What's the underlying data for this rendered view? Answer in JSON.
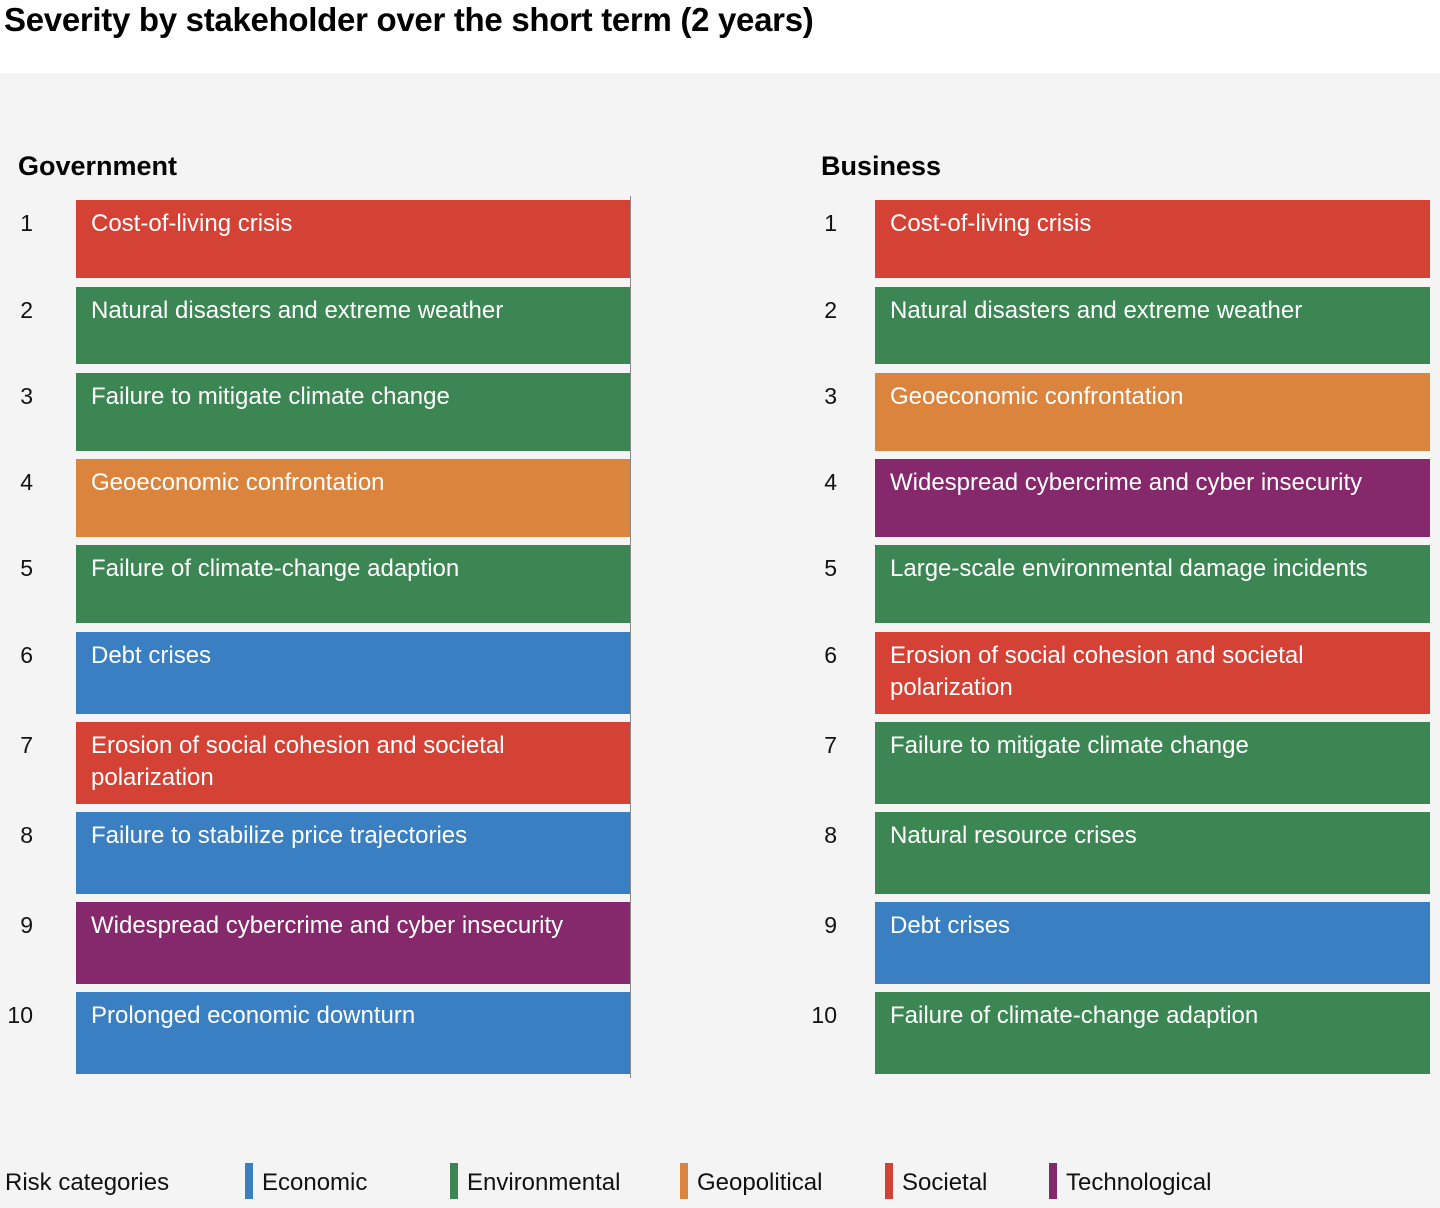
{
  "title": "Severity by stakeholder over the short term (2 years)",
  "colors": {
    "Economic": "#3a7fc1",
    "Environmental": "#3b8652",
    "Geopolitical": "#db843d",
    "Societal": "#d44235",
    "Technological": "#86296c"
  },
  "legend": {
    "label": "Risk categories",
    "items": [
      {
        "name": "Economic",
        "color": "#3a7fc1"
      },
      {
        "name": "Environmental",
        "color": "#3b8652"
      },
      {
        "name": "Geopolitical",
        "color": "#db843d"
      },
      {
        "name": "Societal",
        "color": "#d44235"
      },
      {
        "name": "Technological",
        "color": "#86296c"
      }
    ]
  },
  "chart_data": {
    "type": "table",
    "title": "Severity by stakeholder over the short term (2 years)",
    "columns": [
      {
        "name": "Government",
        "rows": [
          {
            "rank": "1",
            "risk": "Cost-of-living crisis",
            "category": "Societal"
          },
          {
            "rank": "2",
            "risk": "Natural disasters and extreme weather",
            "category": "Environmental"
          },
          {
            "rank": "3",
            "risk": "Failure to mitigate climate change",
            "category": "Environmental"
          },
          {
            "rank": "4",
            "risk": "Geoeconomic confrontation",
            "category": "Geopolitical"
          },
          {
            "rank": "5",
            "risk": "Failure of climate-change adaption",
            "category": "Environmental"
          },
          {
            "rank": "6",
            "risk": "Debt crises",
            "category": "Economic"
          },
          {
            "rank": "7",
            "risk": "Erosion of social cohesion and societal polarization",
            "category": "Societal"
          },
          {
            "rank": "8",
            "risk": "Failure to stabilize price trajectories",
            "category": "Economic"
          },
          {
            "rank": "9",
            "risk": "Widespread cybercrime and cyber insecurity",
            "category": "Technological"
          },
          {
            "rank": "10",
            "risk": "Prolonged economic downturn",
            "category": "Economic"
          }
        ]
      },
      {
        "name": "Business",
        "rows": [
          {
            "rank": "1",
            "risk": "Cost-of-living crisis",
            "category": "Societal"
          },
          {
            "rank": "2",
            "risk": "Natural disasters and extreme weather",
            "category": "Environmental"
          },
          {
            "rank": "3",
            "risk": "Geoeconomic confrontation",
            "category": "Geopolitical"
          },
          {
            "rank": "4",
            "risk": "Widespread cybercrime and cyber insecurity",
            "category": "Technological"
          },
          {
            "rank": "5",
            "risk": "Large-scale environmental damage incidents",
            "category": "Environmental"
          },
          {
            "rank": "6",
            "risk": "Erosion of social cohesion and societal polarization",
            "category": "Societal"
          },
          {
            "rank": "7",
            "risk": "Failure to mitigate climate change",
            "category": "Environmental"
          },
          {
            "rank": "8",
            "risk": "Natural resource crises",
            "category": "Environmental"
          },
          {
            "rank": "9",
            "risk": "Debt crises",
            "category": "Economic"
          },
          {
            "rank": "10",
            "risk": "Failure of climate-change adaption",
            "category": "Environmental"
          }
        ]
      }
    ]
  }
}
